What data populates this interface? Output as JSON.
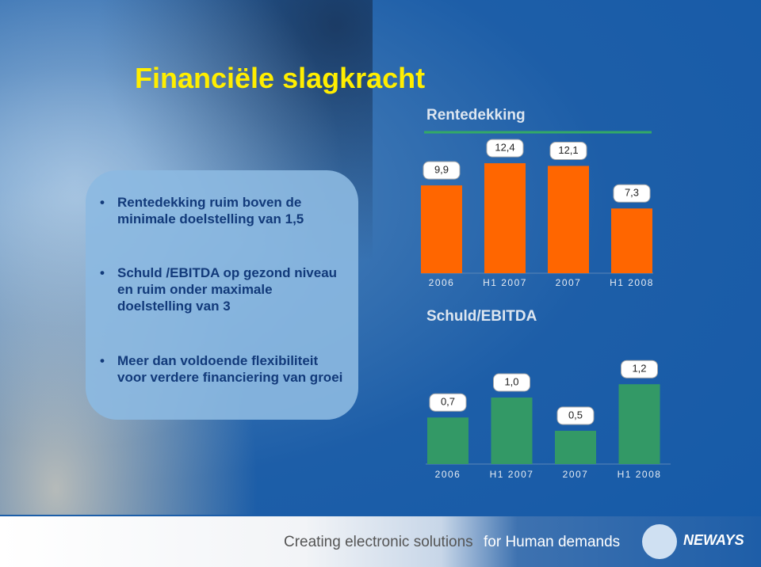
{
  "slide": {
    "title": "Financiële slagkracht",
    "bullets": [
      "Rentedekking ruim boven de minimale doelstelling van 1,5",
      "Schuld /EBITDA op gezond niveau en ruim onder maximale doelstelling van 3",
      "Meer dan voldoende flexibiliteit voor verdere financiering van groei"
    ],
    "footer": {
      "tagline_start": "Creating electronic solutions",
      "tagline_end": "for Human demands",
      "logo": "NEWAYS"
    }
  },
  "chart_data": [
    {
      "type": "bar",
      "title": "Rentedekking",
      "categories": [
        "2006",
        "H1 2007",
        "2007",
        "H1 2008"
      ],
      "values": [
        9.9,
        12.4,
        12.1,
        7.3
      ],
      "value_labels": [
        "9,9",
        "12,4",
        "12,1",
        "7,3"
      ],
      "color": "#ff6600"
    },
    {
      "type": "bar",
      "title": "Schuld/EBITDA",
      "categories": [
        "2006",
        "H1 2007",
        "2007",
        "H1 2008"
      ],
      "values": [
        0.7,
        1.0,
        0.5,
        1.2
      ],
      "value_labels": [
        "0,7",
        "1,0",
        "0,5",
        "1,2"
      ],
      "color": "#339966"
    }
  ]
}
